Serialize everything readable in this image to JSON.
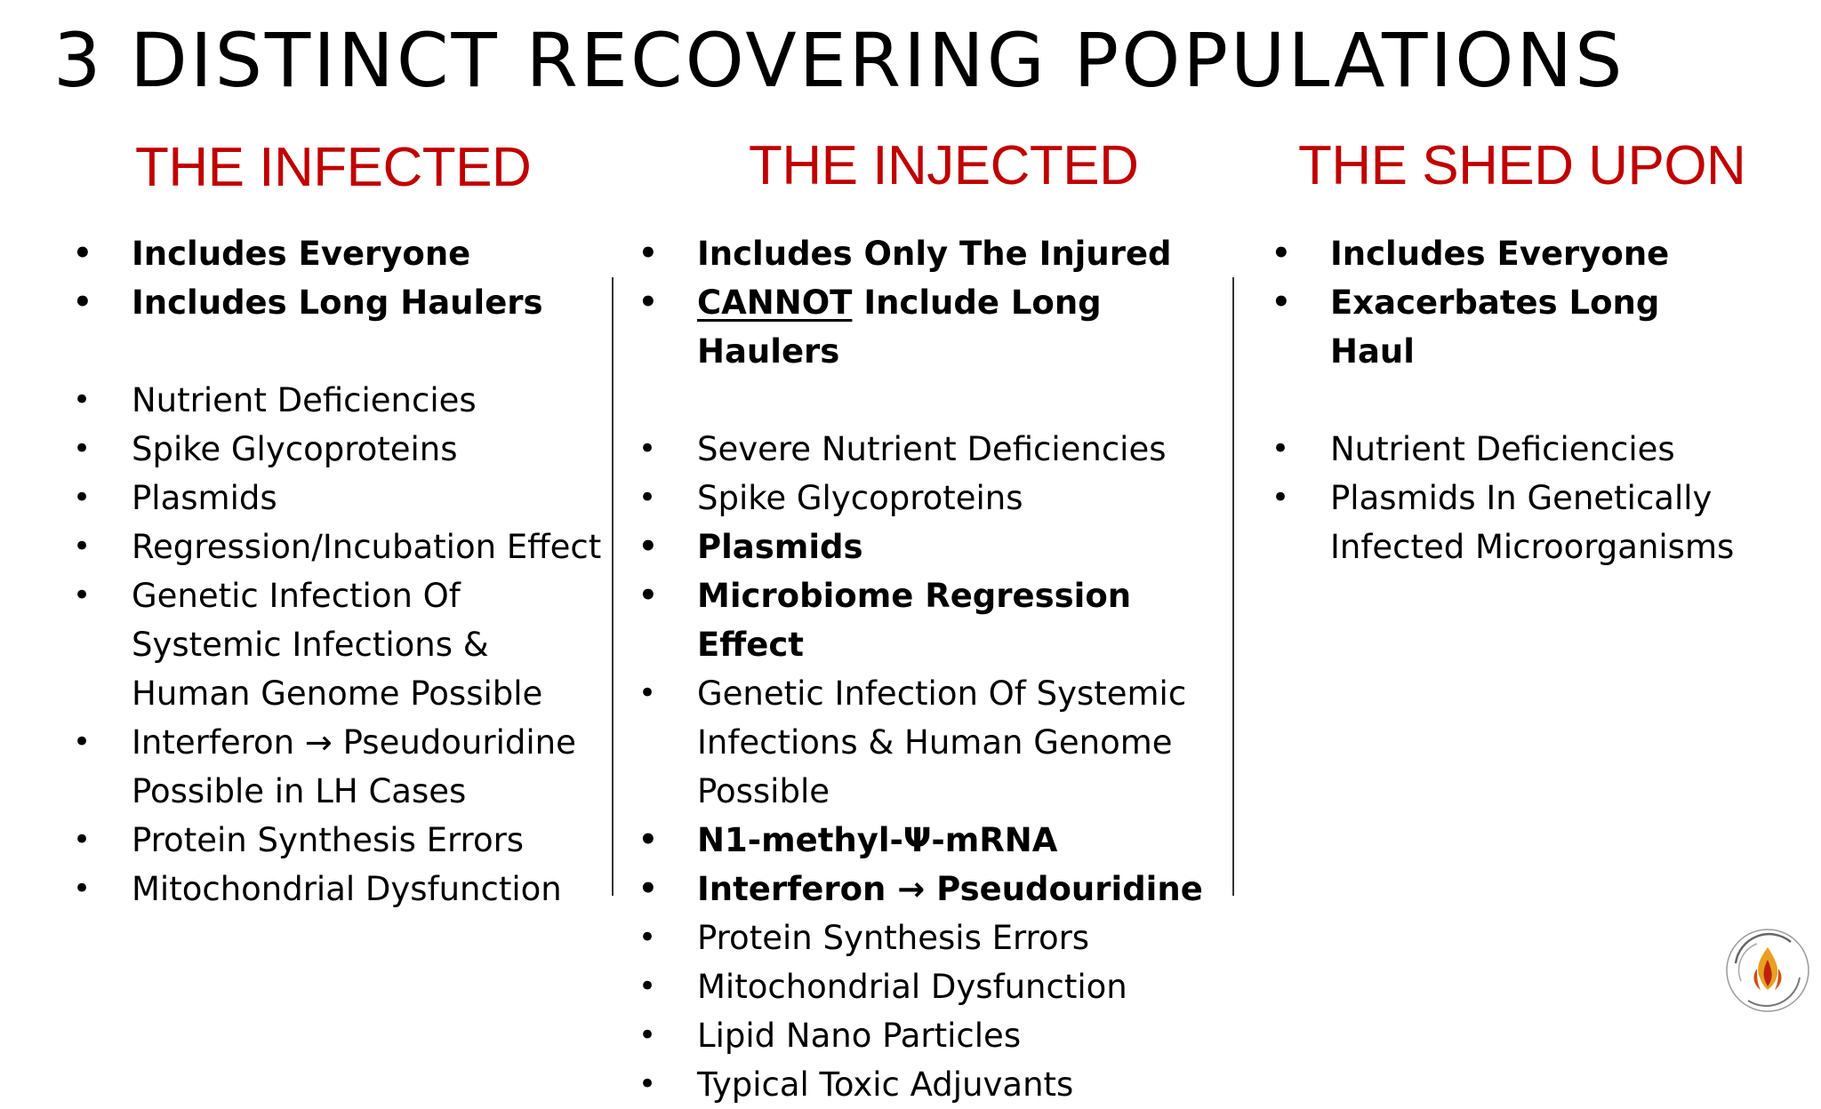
{
  "title": "3 DISTINCT RECOVERING POPULATIONS",
  "colors": {
    "heading": "#c00000",
    "text": "#000000",
    "divider": "#333333"
  },
  "columns": [
    {
      "heading": "THE INFECTED",
      "items": [
        {
          "text": "Includes Everyone",
          "bold": true
        },
        {
          "text": "Includes Long Haulers",
          "bold": true
        },
        {
          "text": "Nutrient Deficiencies",
          "gap": true
        },
        {
          "text": "Spike Glycoproteins"
        },
        {
          "text": "Plasmids"
        },
        {
          "text": "Regression/Incubation Effect"
        },
        {
          "text": "Genetic Infection Of Systemic Infections & Human Genome Possible"
        },
        {
          "text": "Interferon → Pseudouridine Possible in LH Cases"
        },
        {
          "text": "Protein Synthesis Errors"
        },
        {
          "text": "Mitochondrial Dysfunction"
        }
      ]
    },
    {
      "heading": "THE INJECTED",
      "items": [
        {
          "text": "Includes Only The Injured",
          "bold": true
        },
        {
          "text": "Include Long Haulers",
          "underline_prefix": "CANNOT",
          "bold": true
        },
        {
          "text": "Severe Nutrient Deficiencies",
          "gap": true
        },
        {
          "text": "Spike Glycoproteins"
        },
        {
          "text": "Plasmids",
          "bold": true
        },
        {
          "text": "Microbiome Regression Effect",
          "bold": true
        },
        {
          "text": "Genetic Infection Of Systemic Infections & Human Genome Possible"
        },
        {
          "text": "N1-methyl-Ψ-mRNA",
          "bold": true
        },
        {
          "text": "Interferon → Pseudouridine",
          "bold": true
        },
        {
          "text": "Protein Synthesis Errors"
        },
        {
          "text": "Mitochondrial Dysfunction"
        },
        {
          "text": "Lipid Nano Particles"
        },
        {
          "text": "Typical Toxic Adjuvants"
        }
      ]
    },
    {
      "heading": "THE SHED UPON",
      "items": [
        {
          "text": "Includes Everyone",
          "bold": true
        },
        {
          "text": "Exacerbates Long Haul",
          "bold": true
        },
        {
          "text": "Nutrient Deficiencies",
          "gap": true
        },
        {
          "text": "Plasmids In Genetically Infected Microorganisms"
        }
      ]
    }
  ],
  "logo": {
    "icon": "flame-logo-icon",
    "ring_color": "#888888",
    "flame_colors": [
      "#e8a020",
      "#c02010"
    ]
  }
}
